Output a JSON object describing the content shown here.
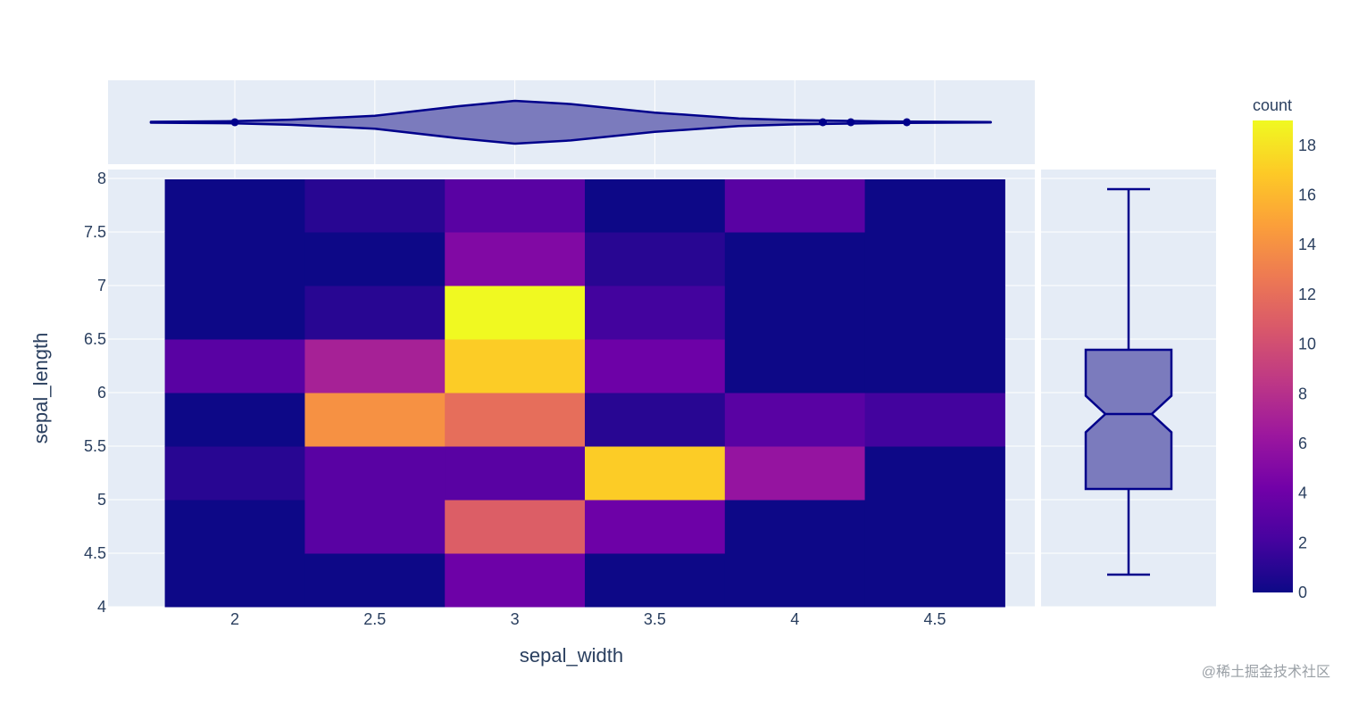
{
  "chart_data": {
    "type": "heatmap",
    "subtype": "2d-density-histogram with marginal violin (x) and notched box (y)",
    "xlabel": "sepal_width",
    "ylabel": "sepal_length",
    "x_range": [
      1.6,
      4.9
    ],
    "y_range": [
      4,
      8
    ],
    "x_ticks": [
      2,
      2.5,
      3,
      3.5,
      4,
      4.5
    ],
    "x_tick_labels": [
      "2",
      "2.5",
      "3",
      "3.5",
      "4",
      "4.5"
    ],
    "y_ticks": [
      4,
      4.5,
      5,
      5.5,
      6,
      6.5,
      7,
      7.5,
      8
    ],
    "y_tick_labels": [
      "4",
      "4.5",
      "5",
      "5.5",
      "6",
      "6.5",
      "7",
      "7.5",
      "8"
    ],
    "x_bins": [
      [
        1.75,
        2.25
      ],
      [
        2.25,
        2.75
      ],
      [
        2.75,
        3.25
      ],
      [
        3.25,
        3.75
      ],
      [
        3.75,
        4.25
      ],
      [
        4.25,
        4.75
      ]
    ],
    "y_bins": [
      [
        4,
        4.5
      ],
      [
        4.5,
        5
      ],
      [
        5,
        5.5
      ],
      [
        5.5,
        6
      ],
      [
        6,
        6.5
      ],
      [
        6.5,
        7
      ],
      [
        7,
        7.5
      ],
      [
        7.5,
        8
      ]
    ],
    "counts": [
      [
        0,
        0,
        4,
        0,
        0,
        0
      ],
      [
        0,
        3,
        11,
        4,
        0,
        0
      ],
      [
        1,
        3,
        3,
        17,
        6,
        0
      ],
      [
        0,
        14,
        12,
        1,
        3,
        2
      ],
      [
        3,
        7,
        17,
        4,
        0,
        0
      ],
      [
        0,
        1,
        19,
        2,
        0,
        0
      ],
      [
        0,
        0,
        5,
        1,
        0,
        0
      ],
      [
        0,
        1,
        3,
        0,
        3,
        0
      ]
    ],
    "colorbar": {
      "title": "count",
      "range": [
        0,
        19
      ],
      "ticks": [
        0,
        2,
        4,
        6,
        8,
        10,
        12,
        14,
        16,
        18
      ],
      "tick_labels": [
        "0",
        "2",
        "4",
        "6",
        "8",
        "10",
        "12",
        "14",
        "16",
        "18"
      ],
      "colorscale": [
        "#0d0887",
        "#46039f",
        "#7201a8",
        "#9c179e",
        "#bd3786",
        "#d8576b",
        "#ed7953",
        "#fb9f3a",
        "#fdca26",
        "#f0f921"
      ]
    },
    "marginal_x_violin": {
      "outliers": [
        2.0,
        4.1,
        4.2,
        4.4
      ],
      "density_x": [
        1.7,
        2.0,
        2.2,
        2.5,
        2.8,
        3.0,
        3.2,
        3.5,
        3.8,
        4.0,
        4.3,
        4.7
      ],
      "density_halfwidth": [
        0.02,
        0.05,
        0.12,
        0.3,
        0.75,
        1.0,
        0.85,
        0.45,
        0.18,
        0.1,
        0.04,
        0.01
      ]
    },
    "marginal_y_box": {
      "min": 4.3,
      "q1": 5.1,
      "median": 5.8,
      "q3": 6.4,
      "max": 7.9,
      "notch_low": 5.63,
      "notch_high": 5.97
    }
  },
  "colors": {
    "plot_bg": "#e5ecf6",
    "grid": "#ffffff",
    "marginal_fill": "#7b7bbd",
    "marginal_line": "#00008b",
    "text": "#2a3f5f"
  },
  "watermark": "@稀土掘金技术社区"
}
